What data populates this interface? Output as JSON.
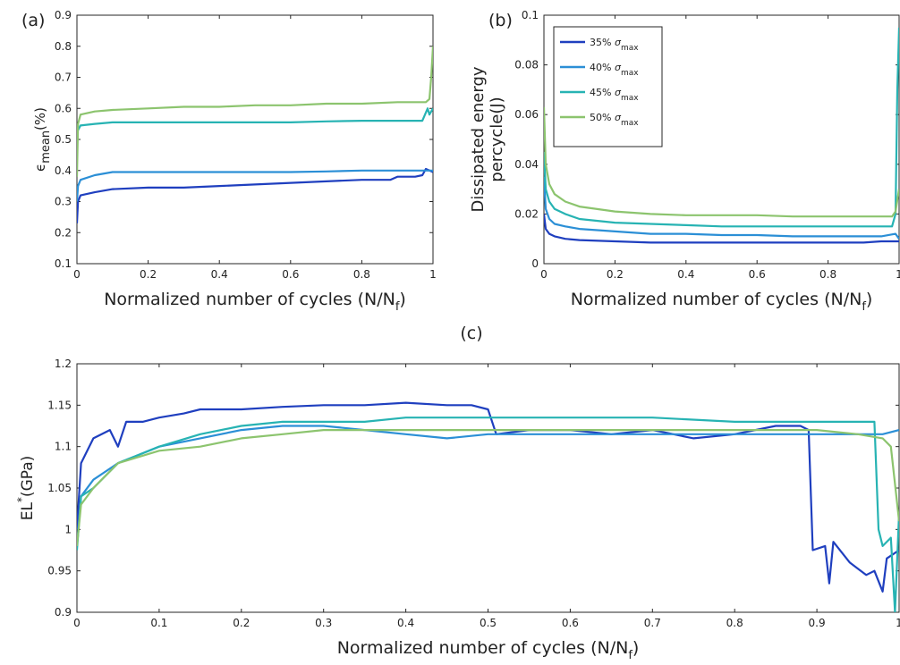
{
  "chart_data": [
    {
      "id": "a",
      "type": "line",
      "panel_label": "(a)",
      "xlabel": "Normalized number of cycles (N/N",
      "xlabel_sub": "f",
      "xlabel_tail": ")",
      "ylabel_main": "ϵ",
      "ylabel_sub": "mean",
      "ylabel_tail": "(%)",
      "xlim": [
        0,
        1
      ],
      "ylim": [
        0.1,
        0.9
      ],
      "xticks": [
        0,
        0.2,
        0.4,
        0.6,
        0.8,
        1
      ],
      "xtick_labels": [
        "0",
        "0.2",
        "0.4",
        "0.6",
        "0.8",
        "1"
      ],
      "yticks": [
        0.1,
        0.2,
        0.3,
        0.4,
        0.5,
        0.6,
        0.7,
        0.8,
        0.9
      ],
      "ytick_labels": [
        "0.1",
        "0.2",
        "0.3",
        "0.4",
        "0.5",
        "0.6",
        "0.7",
        "0.8",
        "0.9"
      ],
      "series": [
        {
          "color": "#1f3fbf",
          "x": [
            0,
            0.003,
            0.01,
            0.05,
            0.1,
            0.2,
            0.3,
            0.4,
            0.5,
            0.6,
            0.7,
            0.8,
            0.88,
            0.9,
            0.95,
            0.97,
            0.98,
            1.0
          ],
          "y": [
            0.23,
            0.3,
            0.32,
            0.33,
            0.34,
            0.345,
            0.345,
            0.35,
            0.355,
            0.36,
            0.365,
            0.37,
            0.37,
            0.38,
            0.38,
            0.385,
            0.405,
            0.395
          ]
        },
        {
          "color": "#2b8fd6",
          "x": [
            0,
            0.003,
            0.01,
            0.05,
            0.1,
            0.2,
            0.3,
            0.4,
            0.5,
            0.6,
            0.7,
            0.8,
            0.9,
            0.98,
            1.0
          ],
          "y": [
            0.3,
            0.35,
            0.37,
            0.385,
            0.395,
            0.395,
            0.395,
            0.395,
            0.395,
            0.395,
            0.397,
            0.4,
            0.4,
            0.4,
            0.4
          ]
        },
        {
          "color": "#27b3b3",
          "x": [
            0,
            0.003,
            0.01,
            0.05,
            0.1,
            0.2,
            0.3,
            0.4,
            0.5,
            0.6,
            0.7,
            0.8,
            0.9,
            0.97,
            0.985,
            0.99,
            1.0
          ],
          "y": [
            0.52,
            0.53,
            0.545,
            0.55,
            0.555,
            0.555,
            0.555,
            0.555,
            0.555,
            0.555,
            0.558,
            0.56,
            0.56,
            0.56,
            0.6,
            0.58,
            0.6
          ]
        },
        {
          "color": "#8cc46e",
          "x": [
            0,
            0.003,
            0.01,
            0.05,
            0.1,
            0.2,
            0.3,
            0.4,
            0.5,
            0.6,
            0.7,
            0.8,
            0.9,
            0.98,
            0.99,
            0.995,
            1.0
          ],
          "y": [
            0.38,
            0.55,
            0.58,
            0.59,
            0.595,
            0.6,
            0.605,
            0.605,
            0.61,
            0.61,
            0.615,
            0.615,
            0.62,
            0.62,
            0.63,
            0.7,
            0.8
          ]
        }
      ]
    },
    {
      "id": "b",
      "type": "line",
      "panel_label": "(b)",
      "xlabel": "Normalized number of cycles (N/N",
      "xlabel_sub": "f",
      "xlabel_tail": ")",
      "ylabel_line1": "Dissipated energy",
      "ylabel_line2": "percycle(J)",
      "xlim": [
        0,
        1
      ],
      "ylim": [
        0,
        0.1
      ],
      "xticks": [
        0,
        0.2,
        0.4,
        0.6,
        0.8,
        1
      ],
      "xtick_labels": [
        "0",
        "0.2",
        "0.4",
        "0.6",
        "0.8",
        "1"
      ],
      "yticks": [
        0,
        0.02,
        0.04,
        0.06,
        0.08,
        0.1
      ],
      "ytick_labels": [
        "0",
        "0.02",
        "0.04",
        "0.06",
        "0.08",
        "0.1"
      ],
      "legend_position": "top-left",
      "legend": [
        {
          "pct": "35%",
          "sym": "σ",
          "sub": "max",
          "color": "#1f3fbf"
        },
        {
          "pct": "40%",
          "sym": "σ",
          "sub": "max",
          "color": "#2b8fd6"
        },
        {
          "pct": "45%",
          "sym": "σ",
          "sub": "max",
          "color": "#27b3b3"
        },
        {
          "pct": "50%",
          "sym": "σ",
          "sub": "max",
          "color": "#8cc46e"
        }
      ],
      "series": [
        {
          "color": "#1f3fbf",
          "x": [
            0,
            0.005,
            0.015,
            0.03,
            0.06,
            0.1,
            0.2,
            0.3,
            0.4,
            0.5,
            0.6,
            0.7,
            0.8,
            0.9,
            0.95,
            0.99,
            1.0
          ],
          "y": [
            0.02,
            0.014,
            0.012,
            0.011,
            0.01,
            0.0095,
            0.009,
            0.0085,
            0.0085,
            0.0085,
            0.0085,
            0.0085,
            0.0085,
            0.0085,
            0.009,
            0.009,
            0.009
          ]
        },
        {
          "color": "#2b8fd6",
          "x": [
            0,
            0.005,
            0.015,
            0.03,
            0.06,
            0.1,
            0.2,
            0.3,
            0.4,
            0.5,
            0.6,
            0.7,
            0.8,
            0.9,
            0.95,
            0.99,
            1.0
          ],
          "y": [
            0.035,
            0.022,
            0.018,
            0.016,
            0.015,
            0.014,
            0.013,
            0.012,
            0.012,
            0.0115,
            0.0115,
            0.011,
            0.011,
            0.011,
            0.011,
            0.012,
            0.01
          ]
        },
        {
          "color": "#27b3b3",
          "x": [
            0,
            0.005,
            0.015,
            0.03,
            0.06,
            0.1,
            0.2,
            0.3,
            0.4,
            0.5,
            0.6,
            0.7,
            0.8,
            0.9,
            0.98,
            0.99,
            0.995,
            1.0
          ],
          "y": [
            0.045,
            0.03,
            0.025,
            0.022,
            0.02,
            0.018,
            0.0165,
            0.016,
            0.0155,
            0.015,
            0.015,
            0.015,
            0.015,
            0.015,
            0.015,
            0.02,
            0.07,
            0.095
          ]
        },
        {
          "color": "#8cc46e",
          "x": [
            0,
            0.005,
            0.015,
            0.03,
            0.06,
            0.1,
            0.2,
            0.3,
            0.4,
            0.5,
            0.6,
            0.7,
            0.8,
            0.9,
            0.98,
            0.99,
            1.0
          ],
          "y": [
            0.063,
            0.04,
            0.032,
            0.028,
            0.025,
            0.023,
            0.021,
            0.02,
            0.0195,
            0.0195,
            0.0195,
            0.019,
            0.019,
            0.019,
            0.019,
            0.021,
            0.03
          ]
        }
      ]
    },
    {
      "id": "c",
      "type": "line",
      "panel_label": "(c)",
      "xlabel": "Normalized number of cycles (N/N",
      "xlabel_sub": "f",
      "xlabel_tail": ")",
      "ylabel_main": "EL",
      "ylabel_sup": "*",
      "ylabel_tail": "(GPa)",
      "xlim": [
        0,
        1
      ],
      "ylim": [
        0.9,
        1.2
      ],
      "xticks": [
        0,
        0.1,
        0.2,
        0.3,
        0.4,
        0.5,
        0.6,
        0.7,
        0.8,
        0.9,
        1
      ],
      "xtick_labels": [
        "0",
        "0.1",
        "0.2",
        "0.3",
        "0.4",
        "0.5",
        "0.6",
        "0.7",
        "0.8",
        "0.9",
        "1"
      ],
      "yticks": [
        0.9,
        0.95,
        1.0,
        1.05,
        1.1,
        1.15,
        1.2
      ],
      "ytick_labels": [
        "0.9",
        "0.95",
        "1",
        "1.05",
        "1.1",
        "1.15",
        "1.2"
      ],
      "series": [
        {
          "color": "#1f3fbf",
          "x": [
            0,
            0.005,
            0.02,
            0.04,
            0.05,
            0.06,
            0.08,
            0.1,
            0.13,
            0.15,
            0.2,
            0.25,
            0.3,
            0.35,
            0.4,
            0.45,
            0.48,
            0.5,
            0.51,
            0.55,
            0.6,
            0.65,
            0.7,
            0.75,
            0.8,
            0.85,
            0.88,
            0.89,
            0.895,
            0.91,
            0.915,
            0.92,
            0.94,
            0.96,
            0.97,
            0.98,
            0.985,
            1.0
          ],
          "y": [
            1.0,
            1.08,
            1.11,
            1.12,
            1.1,
            1.13,
            1.13,
            1.135,
            1.14,
            1.145,
            1.145,
            1.148,
            1.15,
            1.15,
            1.153,
            1.15,
            1.15,
            1.145,
            1.115,
            1.12,
            1.12,
            1.115,
            1.12,
            1.11,
            1.115,
            1.125,
            1.125,
            1.12,
            0.975,
            0.98,
            0.935,
            0.985,
            0.96,
            0.945,
            0.95,
            0.925,
            0.965,
            0.975
          ]
        },
        {
          "color": "#2b8fd6",
          "x": [
            0,
            0.005,
            0.02,
            0.05,
            0.1,
            0.15,
            0.2,
            0.25,
            0.3,
            0.35,
            0.4,
            0.45,
            0.5,
            0.55,
            0.6,
            0.7,
            0.8,
            0.9,
            0.95,
            0.98,
            1.0
          ],
          "y": [
            0.98,
            1.04,
            1.06,
            1.08,
            1.1,
            1.11,
            1.12,
            1.125,
            1.125,
            1.12,
            1.115,
            1.11,
            1.115,
            1.115,
            1.115,
            1.115,
            1.115,
            1.115,
            1.115,
            1.115,
            1.12
          ]
        },
        {
          "color": "#27b3b3",
          "x": [
            0,
            0.005,
            0.02,
            0.05,
            0.1,
            0.15,
            0.2,
            0.25,
            0.3,
            0.35,
            0.4,
            0.45,
            0.5,
            0.6,
            0.7,
            0.8,
            0.9,
            0.95,
            0.97,
            0.975,
            0.98,
            0.99,
            0.995,
            1.0
          ],
          "y": [
            0.975,
            1.04,
            1.05,
            1.08,
            1.1,
            1.115,
            1.125,
            1.13,
            1.13,
            1.13,
            1.135,
            1.135,
            1.135,
            1.135,
            1.135,
            1.13,
            1.13,
            1.13,
            1.13,
            1.0,
            0.98,
            0.99,
            0.9,
            1.02
          ]
        },
        {
          "color": "#8cc46e",
          "x": [
            0,
            0.005,
            0.02,
            0.05,
            0.1,
            0.15,
            0.2,
            0.25,
            0.3,
            0.35,
            0.4,
            0.45,
            0.5,
            0.55,
            0.6,
            0.7,
            0.8,
            0.9,
            0.95,
            0.98,
            0.99,
            1.0
          ],
          "y": [
            0.98,
            1.03,
            1.05,
            1.08,
            1.095,
            1.1,
            1.11,
            1.115,
            1.12,
            1.12,
            1.12,
            1.12,
            1.12,
            1.12,
            1.12,
            1.12,
            1.12,
            1.12,
            1.115,
            1.11,
            1.1,
            1.01
          ]
        }
      ]
    }
  ]
}
